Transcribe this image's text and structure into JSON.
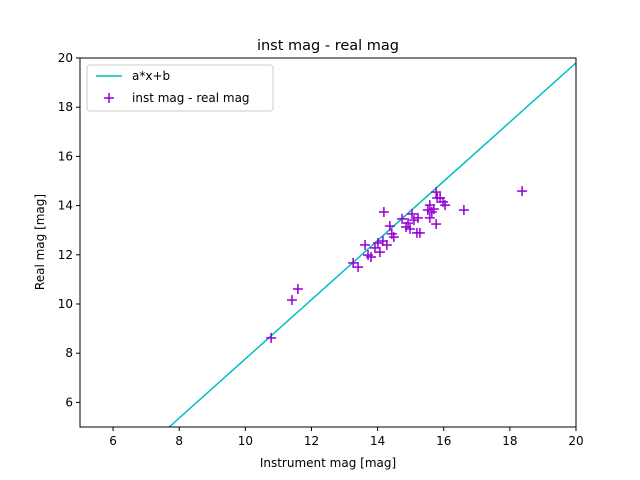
{
  "chart_data": {
    "type": "scatter",
    "title": "inst mag - real mag",
    "xlabel": "Instrument mag [mag]",
    "ylabel": "Real mag [mag]",
    "xlim": [
      5,
      20
    ],
    "ylim": [
      5,
      20
    ],
    "xticks": [
      6,
      8,
      10,
      12,
      14,
      16,
      18,
      20
    ],
    "yticks": [
      6,
      8,
      10,
      12,
      14,
      16,
      18,
      20
    ],
    "grid": false,
    "legend_position": "top-left",
    "line": {
      "name": "a*x+b",
      "slope": 1.203,
      "intercept": -4.26,
      "color": "#00bfbf"
    },
    "scatter": {
      "name": "inst mag - real mag",
      "color": "#9400d3",
      "marker": "plus",
      "x": [
        10.78,
        11.41,
        11.59,
        13.26,
        13.41,
        13.62,
        13.71,
        13.8,
        13.92,
        14.01,
        14.07,
        14.19,
        14.16,
        14.28,
        14.37,
        14.43,
        14.49,
        14.74,
        14.86,
        14.92,
        14.98,
        15.04,
        15.1,
        15.19,
        15.28,
        15.22,
        15.52,
        15.58,
        15.58,
        15.64,
        15.7,
        15.77,
        15.77,
        15.8,
        15.89,
        15.98,
        16.04,
        16.61,
        18.37
      ],
      "y": [
        8.62,
        10.16,
        10.61,
        11.67,
        11.5,
        12.4,
        11.99,
        11.91,
        12.28,
        12.48,
        12.11,
        13.74,
        12.56,
        12.4,
        13.17,
        12.85,
        12.72,
        13.46,
        13.13,
        13.29,
        13.05,
        13.66,
        13.41,
        12.89,
        12.89,
        13.5,
        13.82,
        14.02,
        13.5,
        13.74,
        13.86,
        14.55,
        13.25,
        14.31,
        14.31,
        14.15,
        14.02,
        13.82,
        14.59
      ]
    }
  }
}
